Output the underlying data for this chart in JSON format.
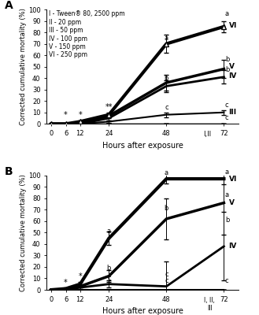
{
  "xvals": [
    0,
    6,
    12,
    24,
    48,
    72
  ],
  "panel_A": {
    "label": "A",
    "legend": [
      "I - Tween® 80, 2500 ppm",
      "II - 20 ppm",
      "III - 50 ppm",
      "IV - 100 ppm",
      "V - 150 ppm",
      "VI - 250 ppm"
    ],
    "series": {
      "I": [
        0,
        0,
        0,
        0,
        0,
        0
      ],
      "II": [
        0,
        0,
        0,
        0,
        0,
        0
      ],
      "III": [
        0,
        0,
        0,
        2,
        8,
        10
      ],
      "IV": [
        0,
        0,
        0,
        5,
        33,
        41
      ],
      "V": [
        0,
        0,
        0,
        7,
        36,
        48
      ],
      "VI": [
        0,
        0,
        2,
        8,
        70,
        85
      ]
    },
    "errors": {
      "I": [
        0,
        0,
        0,
        0,
        0,
        0
      ],
      "II": [
        0,
        0,
        0,
        0,
        0,
        0
      ],
      "III": [
        0,
        0,
        0,
        1,
        2,
        2
      ],
      "IV": [
        0,
        0,
        0,
        2,
        5,
        6
      ],
      "V": [
        0,
        0,
        0,
        2,
        7,
        8
      ],
      "VI": [
        0,
        0,
        1,
        2,
        8,
        5
      ]
    },
    "annotations_24": {
      "text": "**",
      "y": 10
    },
    "annotations_6": {
      "text": "*",
      "y": 4
    },
    "annotations_12": {
      "text": "*",
      "y": 4
    },
    "sig_48": {
      "a": 72,
      "b": 36,
      "c": 11
    },
    "sig_72": {
      "a": 87,
      "b1": 50,
      "b2": 43,
      "c1": 12,
      "c2": 2
    },
    "line_labels_x72": {
      "VI": 87,
      "V": 50,
      "IV": 43,
      "III": 12
    },
    "line_labels_x68": {
      "I_II": 2
    }
  },
  "panel_B": {
    "label": "B",
    "series": {
      "I": [
        0,
        0,
        0,
        0,
        0,
        0
      ],
      "II": [
        0,
        0,
        0,
        0,
        0,
        0
      ],
      "III": [
        0,
        0,
        0,
        0,
        0,
        0
      ],
      "IV": [
        0,
        0,
        2,
        5,
        3,
        38
      ],
      "V": [
        0,
        0,
        3,
        12,
        62,
        76
      ],
      "VI": [
        0,
        1,
        5,
        45,
        97,
        97
      ]
    },
    "errors": {
      "I": [
        0,
        0,
        0,
        0,
        0,
        0
      ],
      "II": [
        0,
        0,
        0,
        0,
        0,
        0
      ],
      "III": [
        0,
        0,
        0,
        0,
        0,
        0
      ],
      "IV": [
        0,
        1,
        1,
        3,
        22,
        30
      ],
      "V": [
        0,
        0,
        2,
        5,
        18,
        28
      ],
      "VI": [
        0,
        1,
        2,
        6,
        4,
        5
      ]
    },
    "annotations_6": {
      "text": "*",
      "y": 3
    },
    "annotations_12": {
      "text": "*",
      "y": 7
    }
  },
  "linewidths": {
    "I": 1,
    "II": 1,
    "III": 1.5,
    "IV": 2,
    "V": 2.5,
    "VI": 3
  },
  "colors": {
    "all": "#000000"
  },
  "ylim": [
    0,
    100
  ],
  "yticks": [
    0,
    10,
    20,
    30,
    40,
    50,
    60,
    70,
    80,
    90,
    100
  ],
  "xticks": [
    0,
    6,
    12,
    24,
    48,
    72
  ],
  "xlabel": "Hours after exposure",
  "ylabel": "Corrected cumulative mortality (%)"
}
